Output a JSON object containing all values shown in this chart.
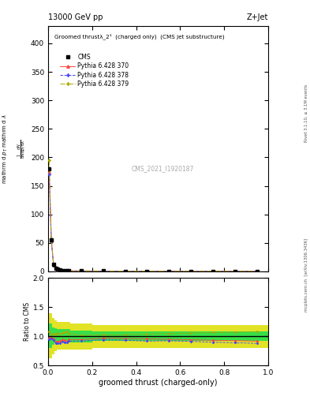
{
  "title_top_left": "13000 GeV pp",
  "title_top_right": "Z+Jet",
  "watermark": "CMS_2021_I1920187",
  "right_label_top": "Rivet 3.1.10, ≥ 3.1M events",
  "right_label_bot": "mcplots.cern.ch  [arXiv:1306.3436]",
  "xlabel": "groomed thrust (charged-only)",
  "ylabel_main_lines": [
    "mathrm d²N",
    "mathrm d pₕ mathrm d lambda",
    "",
    "1",
    "mathrm d N / mathrm d pₕ mathrm d mathrm d lambda"
  ],
  "ylabel_ratio": "Ratio to CMS",
  "inner_title": "Groomed thrustλ_2¹  (charged only)  (CMS jet substructure)",
  "xlim": [
    0.0,
    1.0
  ],
  "ylim_main": [
    0.0,
    430.0
  ],
  "ylim_ratio": [
    0.5,
    2.0
  ],
  "main_yticks": [
    0,
    50,
    100,
    150,
    200,
    250,
    300,
    350,
    400
  ],
  "ratio_yticks": [
    0.5,
    1.0,
    1.5,
    2.0
  ],
  "cms_color": "#000000",
  "p370_color": "#ff4444",
  "p378_color": "#4444ff",
  "p379_color": "#aaaa00",
  "green_color": "#00dd55",
  "yellow_color": "#dddd00",
  "x_edges": [
    0.0,
    0.01,
    0.02,
    0.03,
    0.04,
    0.05,
    0.06,
    0.07,
    0.08,
    0.09,
    0.1,
    0.2,
    0.3,
    0.4,
    0.5,
    0.6,
    0.7,
    0.8,
    0.9,
    1.0
  ],
  "x_centers": [
    0.005,
    0.015,
    0.025,
    0.035,
    0.045,
    0.055,
    0.065,
    0.075,
    0.085,
    0.095,
    0.15,
    0.25,
    0.35,
    0.45,
    0.55,
    0.65,
    0.75,
    0.85,
    0.95
  ],
  "cms_y": [
    180,
    55,
    12,
    6,
    3.5,
    2.5,
    1.8,
    1.5,
    1.2,
    1.0,
    0.9,
    0.7,
    0.6,
    0.5,
    0.4,
    0.35,
    0.3,
    0.28,
    0.25
  ],
  "p370_y": [
    175,
    54,
    11.5,
    5.5,
    3.2,
    2.3,
    1.7,
    1.4,
    1.1,
    0.95,
    0.85,
    0.68,
    0.58,
    0.48,
    0.38,
    0.33,
    0.28,
    0.26,
    0.23
  ],
  "p378_y": [
    170,
    53,
    11.2,
    5.3,
    3.1,
    2.2,
    1.65,
    1.35,
    1.08,
    0.92,
    0.83,
    0.66,
    0.56,
    0.46,
    0.37,
    0.32,
    0.27,
    0.25,
    0.22
  ],
  "p379_y": [
    195,
    57,
    12.5,
    6.2,
    3.7,
    2.6,
    1.9,
    1.6,
    1.3,
    1.05,
    0.92,
    0.72,
    0.62,
    0.52,
    0.42,
    0.37,
    0.32,
    0.3,
    0.27
  ],
  "ratio_yellow_lo": [
    0.62,
    0.62,
    0.7,
    0.75,
    0.78,
    0.78,
    0.78,
    0.78,
    0.78,
    0.78,
    0.78,
    0.8,
    0.8,
    0.8,
    0.8,
    0.8,
    0.8,
    0.8,
    0.8
  ],
  "ratio_yellow_hi": [
    1.4,
    1.4,
    1.32,
    1.28,
    1.25,
    1.25,
    1.25,
    1.25,
    1.25,
    1.25,
    1.22,
    1.2,
    1.2,
    1.2,
    1.2,
    1.2,
    1.2,
    1.2,
    1.2
  ],
  "ratio_green_lo": [
    0.8,
    0.8,
    0.85,
    0.88,
    0.9,
    0.9,
    0.9,
    0.9,
    0.9,
    0.9,
    0.9,
    0.92,
    0.92,
    0.92,
    0.92,
    0.92,
    0.92,
    0.92,
    0.92
  ],
  "ratio_green_hi": [
    1.22,
    1.22,
    1.16,
    1.14,
    1.12,
    1.12,
    1.12,
    1.12,
    1.12,
    1.12,
    1.1,
    1.08,
    1.08,
    1.08,
    1.08,
    1.08,
    1.08,
    1.08,
    1.08
  ],
  "fig_width": 3.93,
  "fig_height": 5.12,
  "dpi": 100
}
